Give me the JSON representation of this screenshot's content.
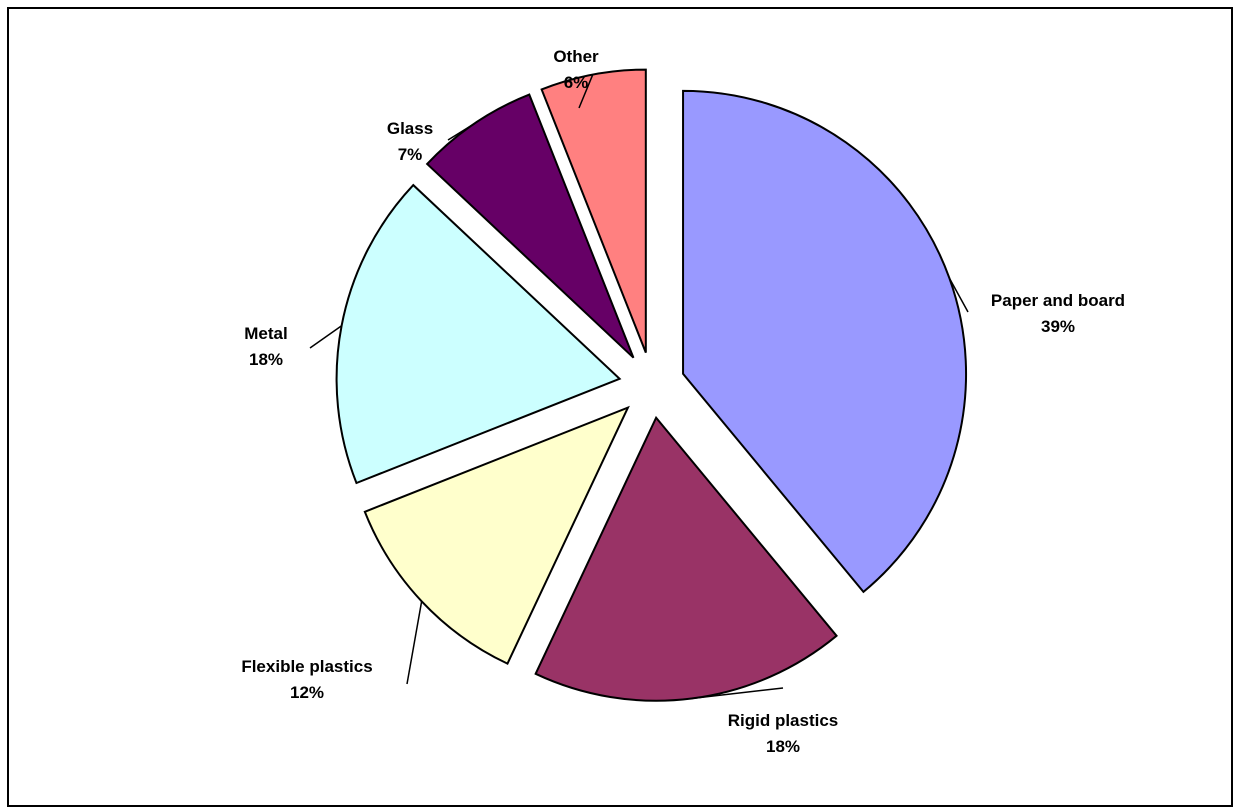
{
  "chart_data": {
    "type": "pie",
    "exploded": true,
    "slices": [
      {
        "label": "Paper and board",
        "value": 39,
        "value_label": "39%",
        "color": "#9999ff"
      },
      {
        "label": "Rigid plastics",
        "value": 18,
        "value_label": "18%",
        "color": "#993366"
      },
      {
        "label": "Flexible plastics",
        "value": 12,
        "value_label": "12%",
        "color": "#ffffcc"
      },
      {
        "label": "Metal",
        "value": 18,
        "value_label": "18%",
        "color": "#ccffff"
      },
      {
        "label": "Glass",
        "value": 7,
        "value_label": "7%",
        "color": "#660066"
      },
      {
        "label": "Other",
        "value": 6,
        "value_label": "6%",
        "color": "#ff8080"
      }
    ],
    "title": "",
    "legend": false
  }
}
